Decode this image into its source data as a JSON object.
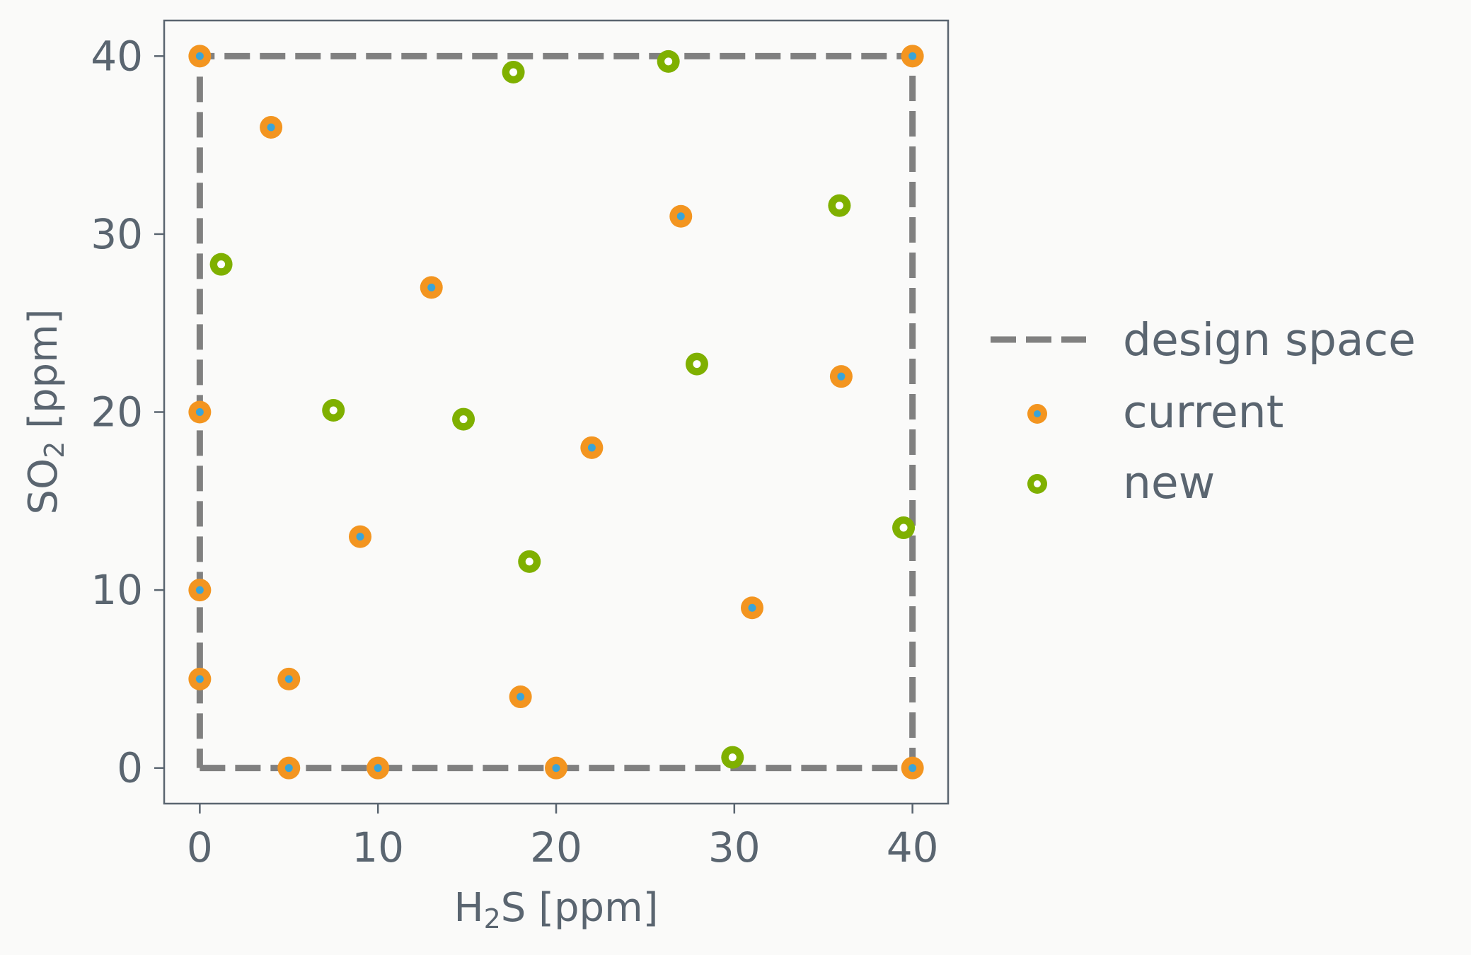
{
  "chart_data": {
    "type": "scatter",
    "xlabel": {
      "main": "H",
      "sub": "2",
      "rest": "S [ppm]"
    },
    "ylabel": {
      "main": "SO",
      "sub": "2",
      "rest": " [ppm]"
    },
    "xlim": [
      -2,
      42
    ],
    "ylim": [
      -2,
      42
    ],
    "xticks": [
      0,
      10,
      20,
      30,
      40
    ],
    "yticks": [
      0,
      10,
      20,
      30,
      40
    ],
    "design_space": {
      "name": "design space",
      "x": [
        0,
        40,
        40,
        0,
        0
      ],
      "y": [
        0,
        0,
        40,
        40,
        0
      ],
      "color": "#808080"
    },
    "series": [
      {
        "name": "current",
        "color": "#f39520",
        "center_color": "#3aa4d8",
        "points": [
          [
            0,
            40
          ],
          [
            40,
            40
          ],
          [
            4,
            36
          ],
          [
            27,
            31
          ],
          [
            13,
            27
          ],
          [
            36,
            22
          ],
          [
            0,
            20
          ],
          [
            22,
            18
          ],
          [
            9,
            13
          ],
          [
            0,
            10
          ],
          [
            31,
            9
          ],
          [
            0,
            5
          ],
          [
            5,
            5
          ],
          [
            18,
            4
          ],
          [
            5,
            0
          ],
          [
            10,
            0
          ],
          [
            20,
            0
          ],
          [
            40,
            0
          ]
        ]
      },
      {
        "name": "new",
        "color": "#7fb000",
        "center_color": "#ffffff",
        "points": [
          [
            17.6,
            39.1
          ],
          [
            26.3,
            39.7
          ],
          [
            1.2,
            28.3
          ],
          [
            35.9,
            31.6
          ],
          [
            7.5,
            20.1
          ],
          [
            14.8,
            19.6
          ],
          [
            27.9,
            22.7
          ],
          [
            39.5,
            13.5
          ],
          [
            18.5,
            11.6
          ],
          [
            29.9,
            0.6
          ]
        ]
      }
    ],
    "legend": {
      "position": "right"
    }
  }
}
